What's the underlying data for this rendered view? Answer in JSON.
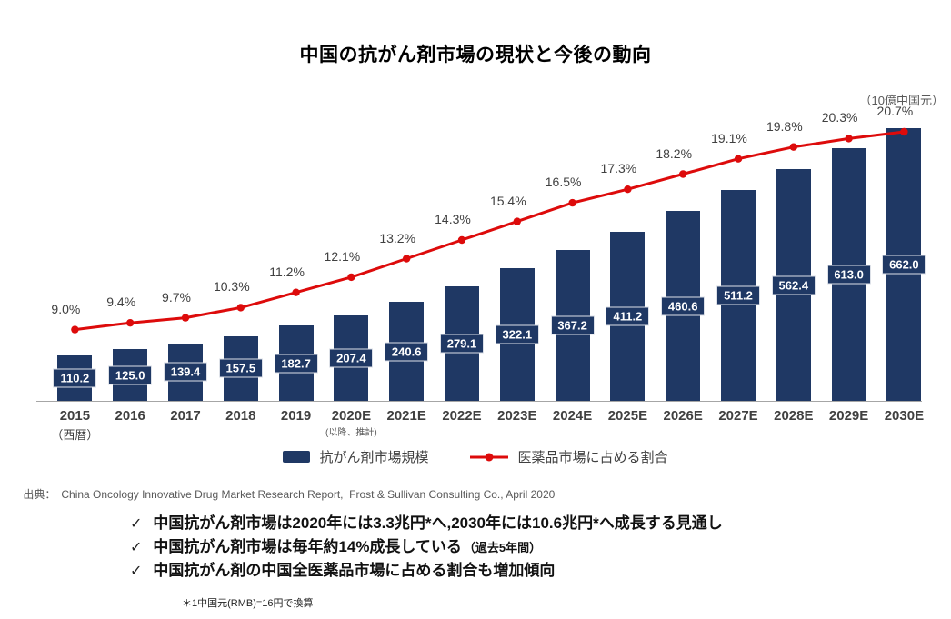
{
  "title": "中国の抗がん剤市場の現状と今後の動向",
  "unit_label": "（10億中国元）",
  "axis_note_left": "（西暦）",
  "axis_note_2020": "(以降、推計)",
  "legend": {
    "bars": "抗がん剤市場規模",
    "line": "医薬品市場に占める割合"
  },
  "source": {
    "prefix": "出典：",
    "text": "China Oncology Innovative Drug Market Research Report,  Frost & Sullivan Consulting Co., April 2020"
  },
  "bullets": [
    {
      "check": "✓",
      "text": "中国抗がん剤市場は2020年には3.3兆円*へ,2030年には10.6兆円*へ成長する見通し",
      "suffix": ""
    },
    {
      "check": "✓",
      "text": "中国抗がん剤市場は毎年約14%成長している",
      "suffix": "（過去5年間）"
    },
    {
      "check": "✓",
      "text": "中国抗がん剤の中国全医薬品市場に占める割合も増加傾向",
      "suffix": ""
    }
  ],
  "footnote": "＊1中国元(RMB)=16円で換算",
  "colors": {
    "bar": "#1f3864",
    "line": "#dd0b0b",
    "value_text": "#ffffff",
    "pct_text": "#404040",
    "axis": "#a6a6a6"
  },
  "chart_data": {
    "type": "bar",
    "subtype": "bar+line combo",
    "categories": [
      "2015",
      "2016",
      "2017",
      "2018",
      "2019",
      "2020E",
      "2021E",
      "2022E",
      "2023E",
      "2024E",
      "2025E",
      "2026E",
      "2027E",
      "2028E",
      "2029E",
      "2030E"
    ],
    "series": [
      {
        "name": "抗がん剤市場規模",
        "type": "bar",
        "unit": "10億中国元",
        "values": [
          110.2,
          125.0,
          139.4,
          157.5,
          182.7,
          207.4,
          240.6,
          279.1,
          322.1,
          367.2,
          411.2,
          460.6,
          511.2,
          562.4,
          613.0,
          662.0
        ]
      },
      {
        "name": "医薬品市場に占める割合",
        "type": "line",
        "unit": "%",
        "values": [
          9.0,
          9.4,
          9.7,
          10.3,
          11.2,
          12.1,
          13.2,
          14.3,
          15.4,
          16.5,
          17.3,
          18.2,
          19.1,
          19.8,
          20.3,
          20.7
        ]
      }
    ],
    "title": "中国の抗がん剤市場の現状と今後の動向",
    "xlabel": "西暦（2020E以降、推計）",
    "ylabel": "10億中国元",
    "legend_position": "bottom",
    "grid": false,
    "bar_value_labels": true,
    "line_point_labels": true
  }
}
